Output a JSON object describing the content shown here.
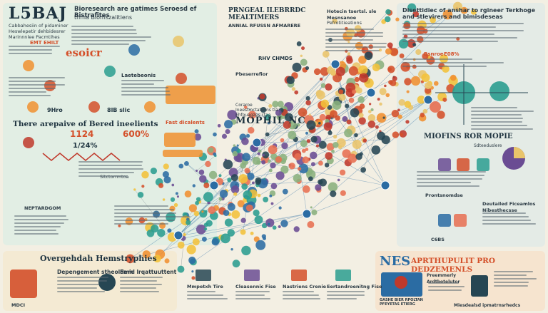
{
  "colors": {
    "background": "#f3efe3",
    "panel_left": "#e2eee4",
    "panel_right": "#e4ebe6",
    "panel_bottom_left": "#f4ead3",
    "panel_bottom_right": "#f6e4cf",
    "accent_red": "#d4502a",
    "accent_orange": "#f09030",
    "accent_teal": "#2a9d8f",
    "accent_blue": "#2b6ca3",
    "accent_purple": "#6a4c93"
  },
  "left_panel": {
    "logo": "L5BAJ",
    "header": "Bioresearch are gatimes Seroesd ef Bistrafites",
    "subheader": "thma Biomszalitiens",
    "intro_lines": [
      "Cabbahesiin of pidaminer",
      "Heswlepetir dehbidesrer",
      "Marinnnlee Pacmtihes"
    ],
    "ester_label": "esoicr",
    "alt_label": "Laetebeonis",
    "line_label": "EMT EHILT",
    "badges": [
      "9Hro",
      "8lB slic"
    ],
    "section_title": "There arepaive of Bered ineelients",
    "stats": [
      "1124",
      "600%",
      "1/24%"
    ],
    "caption_a": "Sitctorrmtoa",
    "caption_b": "NEPTARDGOM",
    "tagline": "Fast dicalents"
  },
  "center": {
    "title": "PRNGEAL ILEBRRDC MEALTIMERS",
    "subtitle": "ANNIAL RFUSSN AFMARERE",
    "left_label": "RHV CHMDS",
    "phase_label": "Pbeserrefior",
    "mid_label": "MOPHIL NC",
    "mid_sub": "Coraroe Ineestmctatiions tla Ehfouagzes ctaa",
    "right_title": "Hotecin tsertsl. sle Mesnsanoe",
    "right_sub": "Pefrotitieations"
  },
  "right_panel": {
    "title": "Disettidiec of anshar to rgineer Terkhoge and stlevirers and bimisdeseas",
    "stat_label": "Bsnroe",
    "stat_value": "E08%",
    "banner": "MIOFINS ROR MOPIE",
    "banner_sub": "Sdteeduslere",
    "sub_title": "Deutailed Ficeamlos Nibesthecsse",
    "sub_label": "C6BS",
    "mortage": "Prontsnomdse"
  },
  "bottom_left": {
    "title": "Overgehdah Hemstryphies",
    "left_heading": "Depengement stheoldem",
    "right_heading": "Fmid lrqattuuttent",
    "caption": "MDCI"
  },
  "bottom_middle": {
    "cards": [
      {
        "title": "Mmpetxh Tire",
        "icon": "briefcase-icon"
      },
      {
        "title": "Cleasennic Fise",
        "icon": "flask-icon"
      },
      {
        "title": "Nastriens Crenie",
        "icon": "beaker-icon"
      },
      {
        "title": "Eertandroenitng Fise",
        "icon": "chart-icon"
      }
    ]
  },
  "bottom_right": {
    "title": "APRTHUPULIT PRO DEDZEMENLS",
    "letters": "NES",
    "book_caption": "GASHE BIER RPOLTAN PFEYETAS ETIERG",
    "side_label": "Preemmerly Ardtbotelutor",
    "bottom_label": "Miesdealsd ipmatrnsrhedcs"
  }
}
